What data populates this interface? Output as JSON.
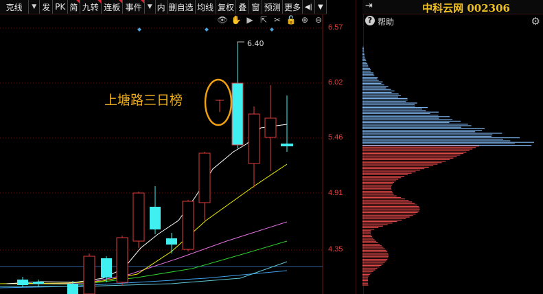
{
  "toolbar": {
    "items": [
      {
        "label": "克线",
        "dropdown": true
      },
      {
        "label": "发"
      },
      {
        "label": "PK"
      },
      {
        "label": "简",
        "mark": true
      },
      {
        "label": "九转",
        "mark": true
      },
      {
        "label": "连板",
        "mark": true
      },
      {
        "label": "事件",
        "mark": true,
        "dropdown": true
      },
      {
        "label": "内"
      },
      {
        "label": "删自选"
      },
      {
        "label": "均线"
      },
      {
        "label": "复权"
      },
      {
        "label": "叠"
      },
      {
        "label": "窗"
      },
      {
        "label": "预测"
      },
      {
        "label": "更多"
      }
    ]
  },
  "right_panel": {
    "title": "中科云网 002306",
    "help_label": "帮助"
  },
  "chart": {
    "price_labels": [
      "6.57",
      "6.02",
      "5.46",
      "4.91",
      "4.35"
    ],
    "high_label": "6.40",
    "annotation": "上塘路三日榜",
    "colors": {
      "up": "#e03c3c",
      "down": "#40f0f0",
      "ma5": "#ffffff",
      "ma10": "#f0f000",
      "ma20": "#e070e0",
      "ma30": "#30d030",
      "ma60": "#40a0f0",
      "grid": "#6a1515"
    }
  }
}
